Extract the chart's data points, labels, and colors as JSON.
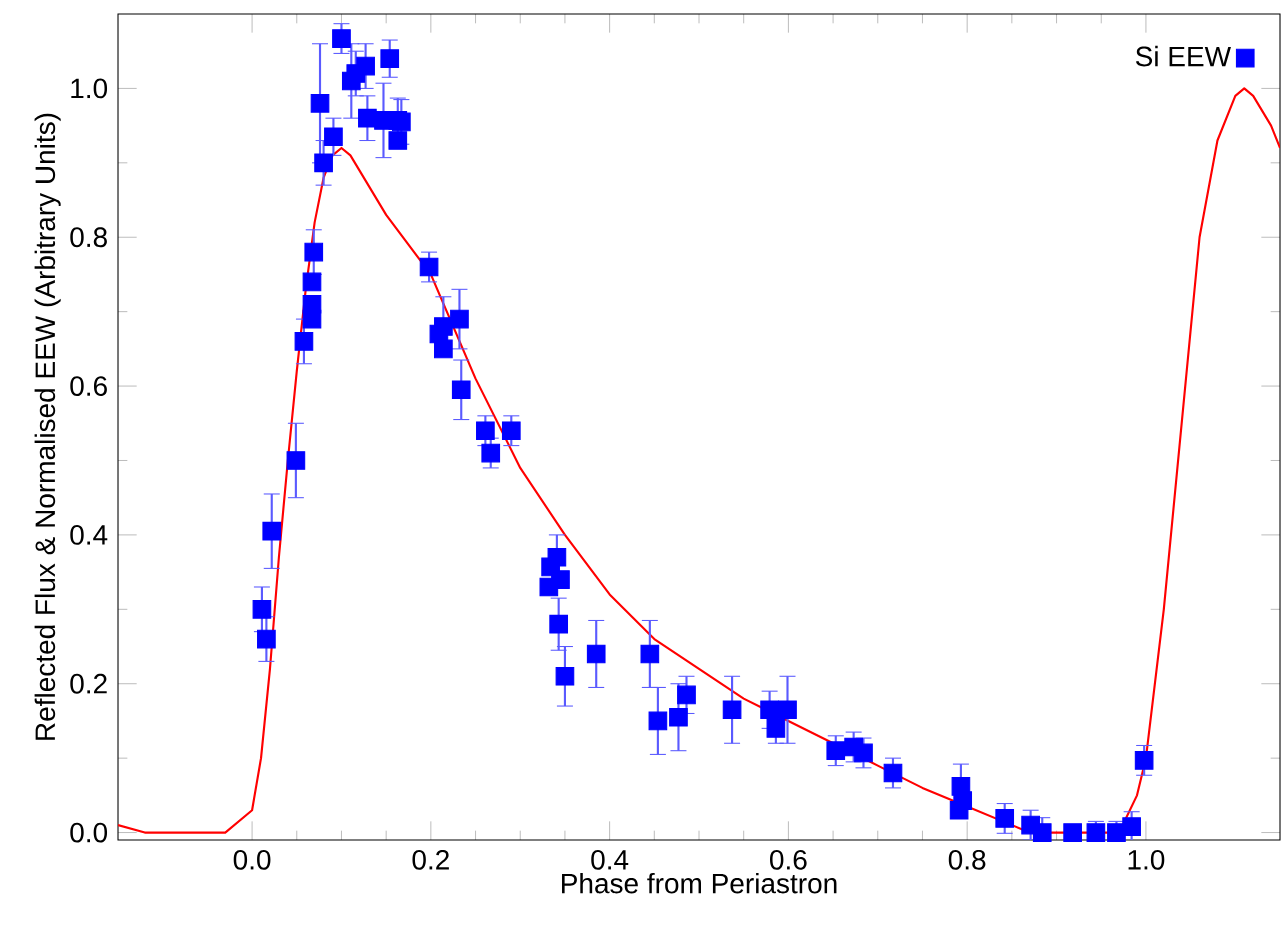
{
  "chart_data": {
    "type": "scatter",
    "xlabel": "Phase from Periastron",
    "ylabel": "Reflected Flux & Normalised EEW (Arbitrary Units)",
    "xlim": [
      -0.15,
      1.15
    ],
    "ylim": [
      -0.01,
      1.1
    ],
    "xticks": [
      {
        "value": 0,
        "label": "0.0"
      },
      0.2,
      0.4,
      0.6,
      0.8,
      {
        "value": 1,
        "label": "1.0"
      }
    ],
    "yticks": [
      {
        "value": 0,
        "label": "0.0"
      },
      0.2,
      0.4,
      0.6,
      0.8,
      {
        "value": 1,
        "label": "1.0"
      }
    ],
    "grid": false,
    "legend": "top right",
    "series": [
      {
        "type": "line",
        "color": "#ff0000",
        "line_style": "solid",
        "marker": "none",
        "x": [
          -0.15,
          -0.12,
          -0.03,
          0,
          0.01,
          0.02,
          0.03,
          0.04,
          0.05,
          0.06,
          0.07,
          0.08,
          0.09,
          0.1,
          0.11,
          0.13,
          0.15,
          0.2,
          0.25,
          0.3,
          0.35,
          0.4,
          0.45,
          0.5,
          0.55,
          0.6,
          0.65,
          0.7,
          0.75,
          0.8,
          0.85,
          0.87,
          0.97,
          0.99,
          1.0,
          1.02,
          1.04,
          1.06,
          1.08,
          1.1,
          1.11,
          1.12,
          1.14,
          1.15
        ],
        "values": [
          0.01,
          0,
          0,
          0.03,
          0.1,
          0.22,
          0.37,
          0.5,
          0.62,
          0.73,
          0.82,
          0.88,
          0.91,
          0.92,
          0.91,
          0.87,
          0.83,
          0.75,
          0.61,
          0.49,
          0.4,
          0.32,
          0.26,
          0.22,
          0.18,
          0.15,
          0.12,
          0.09,
          0.06,
          0.035,
          0.01,
          0,
          0,
          0.05,
          0.1,
          0.3,
          0.55,
          0.8,
          0.93,
          0.99,
          1.0,
          0.99,
          0.95,
          0.92
        ]
      },
      {
        "name": "Si EEW",
        "color": "#0000ff",
        "marker": "square",
        "x": [
          0.011,
          0.016,
          0.022,
          0.049,
          0.058,
          0.067,
          0.067,
          0.067,
          0.069,
          0.08,
          0.076,
          0.091,
          0.1,
          0.111,
          0.116,
          0.127,
          0.129,
          0.154,
          0.147,
          0.163,
          0.163,
          0.167,
          0.198,
          0.209,
          0.214,
          0.214,
          0.232,
          0.234,
          0.261,
          0.267,
          0.29,
          0.334,
          0.332,
          0.341,
          0.345,
          0.343,
          0.35,
          0.385,
          0.445,
          0.454,
          0.477,
          0.486,
          0.537,
          0.579,
          0.586,
          0.599,
          0.653,
          0.673,
          0.684,
          0.717,
          0.793,
          0.795,
          0.791,
          0.842,
          0.871,
          0.884,
          0.918,
          0.944,
          0.967,
          0.984,
          0.998
        ],
        "values": [
          0.3,
          0.26,
          0.405,
          0.5,
          0.66,
          0.69,
          0.71,
          0.74,
          0.78,
          0.9,
          0.98,
          0.935,
          1.067,
          1.01,
          1.02,
          1.03,
          0.96,
          1.04,
          0.957,
          0.957,
          0.93,
          0.955,
          0.76,
          0.67,
          0.65,
          0.68,
          0.69,
          0.595,
          0.54,
          0.51,
          0.54,
          0.357,
          0.33,
          0.37,
          0.34,
          0.28,
          0.21,
          0.24,
          0.24,
          0.15,
          0.155,
          0.185,
          0.165,
          0.165,
          0.14,
          0.165,
          0.11,
          0.115,
          0.107,
          0.08,
          0.062,
          0.043,
          0.03,
          0.019,
          0.01,
          0,
          0,
          0,
          0,
          0.008,
          0.097
        ],
        "errors": [
          0.03,
          0.03,
          0.05,
          0.05,
          0.03,
          null,
          null,
          null,
          0.03,
          0.03,
          0.08,
          0.025,
          0.02,
          0.05,
          0.03,
          0.03,
          0.03,
          0.025,
          0.05,
          0.03,
          null,
          0.03,
          0.02,
          null,
          null,
          0.04,
          0.04,
          0.04,
          0.02,
          0.02,
          0.02,
          null,
          null,
          0.03,
          null,
          0.035,
          0.04,
          0.045,
          0.045,
          0.045,
          0.045,
          0.025,
          0.045,
          0.025,
          0.02,
          0.045,
          0.02,
          0.02,
          0.02,
          0.02,
          0.03,
          null,
          null,
          0.02,
          0.02,
          0.02,
          0.01,
          0.015,
          0.015,
          0.02,
          0.02
        ]
      }
    ]
  }
}
